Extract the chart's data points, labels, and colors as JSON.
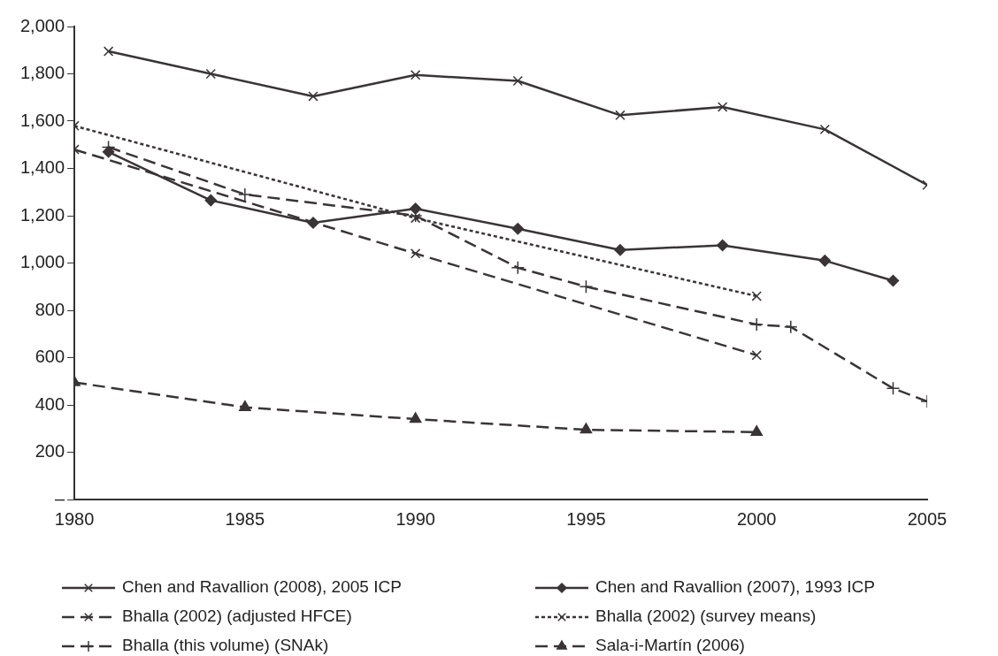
{
  "chart_data": {
    "type": "line",
    "series": [
      {
        "name": "Chen and Ravallion (2008), 2005 ICP",
        "color": "#3a3436",
        "marker": "cross",
        "line_style": "solid",
        "x": [
          1981,
          1984,
          1987,
          1990,
          1993,
          1996,
          1999,
          2002,
          2005
        ],
        "values": [
          1895,
          1800,
          1705,
          1795,
          1770,
          1625,
          1660,
          1565,
          1330
        ]
      },
      {
        "name": "Chen and Ravallion (2007), 1993 ICP",
        "color": "#3a3436",
        "marker": "diamond",
        "line_style": "solid",
        "x": [
          1981,
          1984,
          1987,
          1990,
          1993,
          1996,
          1999,
          2002,
          2004
        ],
        "values": [
          1470,
          1265,
          1170,
          1230,
          1145,
          1055,
          1075,
          1010,
          925
        ]
      },
      {
        "name": "Bhalla (2002) (adjusted HFCE)",
        "color": "#3a3436",
        "marker": "cross",
        "line_style": "dashed",
        "x": [
          1980,
          1990,
          2000
        ],
        "values": [
          1480,
          1040,
          610
        ]
      },
      {
        "name": "Bhalla (2002) (survey means)",
        "color": "#3a3436",
        "marker": "cross",
        "line_style": "dotted",
        "x": [
          1980,
          1990,
          2000
        ],
        "values": [
          1580,
          1190,
          860
        ]
      },
      {
        "name": "Bhalla (this volume) (SNAk)",
        "color": "#3a3436",
        "marker": "plus",
        "line_style": "dashed",
        "x": [
          1981,
          1985,
          1990,
          1993,
          1995,
          2000,
          2001,
          2004,
          2005
        ],
        "values": [
          1490,
          1290,
          1200,
          980,
          900,
          740,
          730,
          470,
          415
        ]
      },
      {
        "name": "Sala-i-Martín (2006)",
        "color": "#3a3436",
        "marker": "triangle",
        "line_style": "dashed",
        "x": [
          1980,
          1985,
          1990,
          1995,
          2000
        ],
        "values": [
          495,
          390,
          340,
          295,
          285
        ]
      }
    ],
    "xlim": [
      1980,
      2005
    ],
    "xticks": [
      1980,
      1985,
      1990,
      1995,
      2000,
      2005
    ],
    "ylim": [
      0,
      2000
    ],
    "yticks": [
      {
        "value": 0,
        "label": "–"
      },
      {
        "value": 200,
        "label": "200"
      },
      {
        "value": 400,
        "label": "400"
      },
      {
        "value": 600,
        "label": "600"
      },
      {
        "value": 800,
        "label": "800"
      },
      {
        "value": 1000,
        "label": "1,000"
      },
      {
        "value": 1200,
        "label": "1,200"
      },
      {
        "value": 1400,
        "label": "1,400"
      },
      {
        "value": 1600,
        "label": "1,600"
      },
      {
        "value": 1800,
        "label": "1,800"
      },
      {
        "value": 2000,
        "label": "2,000"
      }
    ],
    "grid": false,
    "legend": "bottom"
  }
}
